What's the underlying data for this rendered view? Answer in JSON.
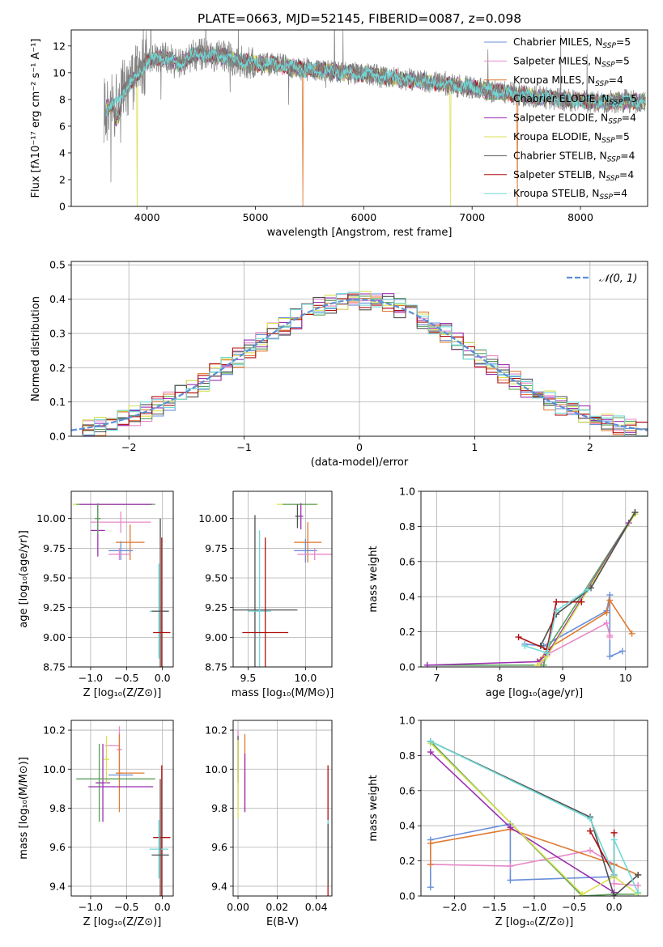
{
  "chart_data": [
    {
      "id": "spectrum",
      "type": "line",
      "title": "PLATE=0663, MJD=52145, FIBERID=0087, z=0.098",
      "xlabel": "wavelength [Angstrom, rest frame]",
      "ylabel": "Flux [fλ10⁻¹⁷ erg cm⁻² s⁻¹ A⁻¹]",
      "xlim": [
        3300,
        8620
      ],
      "ylim": [
        0,
        13.2
      ],
      "xticks": [
        4000,
        5000,
        6000,
        7000,
        8000
      ],
      "yticks": [
        0,
        2,
        4,
        6,
        8,
        10,
        12
      ],
      "grid": false,
      "legend_position": "top-right",
      "data_trace": {
        "color": "#808080",
        "x": [
          3600,
          3700,
          3800,
          3900,
          4000,
          4100,
          4200,
          4300,
          4400,
          4500,
          4600,
          4700,
          4800,
          4900,
          5000,
          5200,
          5400,
          5600,
          5800,
          6000,
          6200,
          6400,
          6600,
          6800,
          7000,
          7200,
          7400,
          7600,
          7800,
          8000,
          8200,
          8400,
          8600
        ],
        "y": [
          7.2,
          7.6,
          8.8,
          9.8,
          10.8,
          11.2,
          11.0,
          10.6,
          11.2,
          11.4,
          11.3,
          11.2,
          11.0,
          10.8,
          10.7,
          10.6,
          10.3,
          10.2,
          10.0,
          9.9,
          9.7,
          9.5,
          9.3,
          9.1,
          8.9,
          8.6,
          8.4,
          8.2,
          8.0,
          7.9,
          7.8,
          7.9,
          7.8
        ],
        "noise_amplitude": 1.4
      },
      "legend": [
        {
          "name": "Chabrier MILES, N_SSP=5",
          "color": "#6a8fd8",
          "base": "Chabrier MILES, N",
          "sub": "SSP",
          "suffix": "=5"
        },
        {
          "name": "Salpeter MILES, N_SSP=5",
          "color": "#e888c8",
          "base": "Salpeter MILES, N",
          "sub": "SSP",
          "suffix": "=5"
        },
        {
          "name": "Kroupa MILES, N_SSP=4",
          "color": "#e07a30",
          "base": "Kroupa MILES, N",
          "sub": "SSP",
          "suffix": "=4"
        },
        {
          "name": "Chabrier ELODIE, N_SSP=5",
          "color": "#5aa05a",
          "base": "Chabrier ELODIE, N",
          "sub": "SSP",
          "suffix": "=5"
        },
        {
          "name": "Salpeter ELODIE, N_SSP=4",
          "color": "#9a30b0",
          "base": "Salpeter ELODIE, N",
          "sub": "SSP",
          "suffix": "=4"
        },
        {
          "name": "Kroupa ELODIE, N_SSP=5",
          "color": "#d8e050",
          "base": "Kroupa ELODIE, N",
          "sub": "SSP",
          "suffix": "=5"
        },
        {
          "name": "Chabrier STELIB, N_SSP=4",
          "color": "#505050",
          "base": "Chabrier STELIB, N",
          "sub": "SSP",
          "suffix": "=4"
        },
        {
          "name": "Salpeter STELIB, N_SSP=4",
          "color": "#b01010",
          "base": "Salpeter STELIB, N",
          "sub": "SSP",
          "suffix": "=4"
        },
        {
          "name": "Kroupa STELIB, N_SSP=4",
          "color": "#70d8d8",
          "base": "Kroupa STELIB, N",
          "sub": "SSP",
          "suffix": "=4"
        }
      ],
      "model_drops": [
        {
          "x": 3540,
          "series": 2
        },
        {
          "x": 3910,
          "series": 5
        },
        {
          "x": 5440,
          "series": 2
        },
        {
          "x": 6800,
          "series": 5
        },
        {
          "x": 7420,
          "series": 2
        }
      ]
    },
    {
      "id": "residuals",
      "type": "bar",
      "xlabel": "(data-model)/error",
      "ylabel": "Normed distribution",
      "xlim": [
        -2.5,
        2.5
      ],
      "ylim": [
        0,
        0.51
      ],
      "xticks": [
        -2,
        -1,
        0,
        1,
        2
      ],
      "yticks": [
        0.0,
        0.1,
        0.2,
        0.3,
        0.4,
        0.5
      ],
      "grid": true,
      "legend_position": "top-right",
      "gaussian": {
        "name": "𝒩(0, 1)",
        "color": "#5b8fd6"
      },
      "bin_edges_start": -2.5,
      "bin_width": 0.1,
      "series_colors": [
        "#6a8fd8",
        "#e888c8",
        "#e07a30",
        "#5aa05a",
        "#9a30b0",
        "#d8e050",
        "#505050",
        "#b01010",
        "#70d8d8"
      ]
    },
    {
      "id": "age_vs_Z",
      "type": "scatter",
      "xlabel": "Z [log₁₀(Z/Z⊙)]",
      "ylabel": "age  [log₁₀(age/yr)]",
      "xlim": [
        -1.27,
        0.15
      ],
      "ylim": [
        8.75,
        10.23
      ],
      "xticks": [
        -1.0,
        -0.5,
        0.0
      ],
      "yticks": [
        8.75,
        9.0,
        9.25,
        9.5,
        9.75,
        10.0
      ],
      "grid": true,
      "points": [
        {
          "x": -0.7,
          "y": 10.12,
          "xerr": 0.55,
          "yerr": 0.0,
          "color": "#d8e050"
        },
        {
          "x": -0.65,
          "y": 10.12,
          "xerr": 0.55,
          "yerr": 0.0,
          "color": "#5aa05a"
        },
        {
          "x": -0.65,
          "y": 10.12,
          "xerr": 0.5,
          "yerr": 0.0,
          "color": "#9a30b0"
        },
        {
          "x": -0.58,
          "y": 9.97,
          "xerr": 0.42,
          "yerr": 0.09,
          "color": "#e888c8"
        },
        {
          "x": -0.9,
          "y": 9.9,
          "xerr": 0.1,
          "yerr": 0.22,
          "color": "#9a30b0"
        },
        {
          "x": -0.9,
          "y": 10.0,
          "xerr": 0.04,
          "yerr": 0.13,
          "color": "#5aa05a"
        },
        {
          "x": -0.45,
          "y": 9.8,
          "xerr": 0.2,
          "yerr": 0.15,
          "color": "#e07a30"
        },
        {
          "x": -0.58,
          "y": 9.73,
          "xerr": 0.17,
          "yerr": 0.08,
          "color": "#6a8fd8"
        },
        {
          "x": -0.6,
          "y": 9.7,
          "xerr": 0.15,
          "yerr": 0.05,
          "color": "#e888c8"
        },
        {
          "x": -0.05,
          "y": 9.22,
          "xerr": 0.13,
          "yerr": 0.4,
          "color": "#70d8d8"
        },
        {
          "x": -0.03,
          "y": 9.22,
          "xerr": 0.12,
          "yerr": 0.78,
          "color": "#505050"
        },
        {
          "x": -0.01,
          "y": 9.04,
          "xerr": 0.12,
          "yerr": 0.8,
          "color": "#b01010"
        }
      ]
    },
    {
      "id": "age_vs_mass",
      "type": "scatter",
      "xlabel": "mass [log₁₀(M/M⊙)]",
      "ylabel": "",
      "xlim": [
        9.37,
        10.23
      ],
      "ylim": [
        8.75,
        10.23
      ],
      "xticks": [
        9.5,
        10.0
      ],
      "yticks": [
        8.75,
        9.0,
        9.25,
        9.5,
        9.75,
        10.0
      ],
      "grid": true,
      "points": [
        {
          "x": 9.93,
          "y": 10.12,
          "xerr": 0.18,
          "yerr": 0.0,
          "color": "#d8e050"
        },
        {
          "x": 9.95,
          "y": 10.12,
          "xerr": 0.15,
          "yerr": 0.0,
          "color": "#5aa05a"
        },
        {
          "x": 9.96,
          "y": 10.02,
          "xerr": 0.02,
          "yerr": 0.11,
          "color": "#9a30b0"
        },
        {
          "x": 9.93,
          "y": 10.02,
          "xerr": 0.02,
          "yerr": 0.1,
          "color": "#505050"
        },
        {
          "x": 10.02,
          "y": 9.8,
          "xerr": 0.12,
          "yerr": 0.17,
          "color": "#e07a30"
        },
        {
          "x": 10.0,
          "y": 9.73,
          "xerr": 0.1,
          "yerr": 0.1,
          "color": "#6a8fd8"
        },
        {
          "x": 10.08,
          "y": 9.7,
          "xerr": 0.15,
          "yerr": 0.05,
          "color": "#e888c8"
        },
        {
          "x": 9.56,
          "y": 9.23,
          "xerr": 0.37,
          "yerr": 0.8,
          "color": "#505050"
        },
        {
          "x": 9.6,
          "y": 9.22,
          "xerr": 0.1,
          "yerr": 0.68,
          "color": "#70d8d8"
        },
        {
          "x": 9.65,
          "y": 9.04,
          "xerr": 0.2,
          "yerr": 0.8,
          "color": "#b01010"
        }
      ]
    },
    {
      "id": "weight_vs_age",
      "type": "line",
      "xlabel": "age  [log₁₀(age/yr)]",
      "ylabel": "mass weight",
      "xlim": [
        6.75,
        10.35
      ],
      "ylim": [
        0,
        1.0
      ],
      "xticks": [
        7,
        8,
        9,
        10
      ],
      "yticks": [
        0.0,
        0.2,
        0.4,
        0.6,
        0.8,
        1.0
      ],
      "grid": true,
      "series": [
        {
          "color": "#6a8fd8",
          "x": [
            8.4,
            8.7,
            9.7,
            9.75,
            9.75,
            9.95
          ],
          "y": [
            0.13,
            0.12,
            0.32,
            0.41,
            0.06,
            0.09
          ]
        },
        {
          "color": "#e888c8",
          "x": [
            8.65,
            8.75,
            9.7,
            9.75,
            9.75
          ],
          "y": [
            0.01,
            0.07,
            0.25,
            0.18,
            0.17
          ]
        },
        {
          "color": "#e07a30",
          "x": [
            8.65,
            8.75,
            9.7,
            9.75,
            10.1
          ],
          "y": [
            0.04,
            0.1,
            0.31,
            0.38,
            0.19
          ]
        },
        {
          "color": "#5aa05a",
          "x": [
            6.85,
            8.7,
            8.75,
            10.15
          ],
          "y": [
            0.01,
            0.01,
            0.1,
            0.88
          ]
        },
        {
          "color": "#9a30b0",
          "x": [
            6.85,
            8.6,
            8.75,
            10.05
          ],
          "y": [
            0.01,
            0.03,
            0.07,
            0.82
          ]
        },
        {
          "color": "#d8e050",
          "x": [
            8.6,
            8.75,
            10.15
          ],
          "y": [
            0.01,
            0.06,
            0.87
          ]
        },
        {
          "color": "#505050",
          "x": [
            8.65,
            8.9,
            9.45,
            10.15
          ],
          "y": [
            0.12,
            0.3,
            0.45,
            0.88
          ]
        },
        {
          "color": "#b01010",
          "x": [
            8.3,
            8.75,
            8.9,
            9.3
          ],
          "y": [
            0.17,
            0.1,
            0.37,
            0.37
          ]
        },
        {
          "color": "#70d8d8",
          "x": [
            8.4,
            8.75,
            8.9,
            9.4
          ],
          "y": [
            0.12,
            0.08,
            0.32,
            0.44
          ]
        }
      ]
    },
    {
      "id": "mass_vs_Z",
      "type": "scatter",
      "xlabel": "Z [log₁₀(Z/Z⊙)]",
      "ylabel": "mass [log₁₀(M/M⊙)]",
      "xlim": [
        -1.27,
        0.15
      ],
      "ylim": [
        9.35,
        10.25
      ],
      "xticks": [
        -1.0,
        -0.5,
        0.0
      ],
      "yticks": [
        9.4,
        9.6,
        9.8,
        10.0,
        10.2
      ],
      "grid": true,
      "points": [
        {
          "x": -0.6,
          "y": 10.1,
          "xerr": 0.04,
          "yerr": 0.12,
          "color": "#e888c8"
        },
        {
          "x": -0.7,
          "y": 10.12,
          "xerr": 0.1,
          "yerr": 0.0,
          "color": "#e888c8"
        },
        {
          "x": -0.6,
          "y": 9.98,
          "xerr": 0.04,
          "yerr": 0.2,
          "color": "#e07a30"
        },
        {
          "x": -0.88,
          "y": 9.93,
          "xerr": 0.05,
          "yerr": 0.2,
          "color": "#5aa05a"
        },
        {
          "x": -0.83,
          "y": 9.93,
          "xerr": 0.1,
          "yerr": 0.2,
          "color": "#9a30b0"
        },
        {
          "x": -0.78,
          "y": 10.05,
          "xerr": 0.04,
          "yerr": 0.12,
          "color": "#d8e050"
        },
        {
          "x": -0.45,
          "y": 9.98,
          "xerr": 0.2,
          "yerr": 0.0,
          "color": "#e07a30"
        },
        {
          "x": -0.58,
          "y": 9.97,
          "xerr": 0.17,
          "yerr": 0.0,
          "color": "#6a8fd8"
        },
        {
          "x": -0.65,
          "y": 9.95,
          "xerr": 0.55,
          "yerr": 0.0,
          "color": "#5aa05a"
        },
        {
          "x": -0.58,
          "y": 9.91,
          "xerr": 0.45,
          "yerr": 0.0,
          "color": "#9a30b0"
        },
        {
          "x": -0.01,
          "y": 9.65,
          "xerr": 0.12,
          "yerr": 0.37,
          "color": "#b01010"
        },
        {
          "x": -0.05,
          "y": 9.59,
          "xerr": 0.13,
          "yerr": 0.15,
          "color": "#70d8d8"
        },
        {
          "x": -0.03,
          "y": 9.56,
          "xerr": 0.12,
          "yerr": 0.39,
          "color": "#505050"
        }
      ]
    },
    {
      "id": "mass_vs_ebv",
      "type": "scatter",
      "xlabel": "E(B-V)",
      "ylabel": "",
      "xlim": [
        -0.0025,
        0.048
      ],
      "ylim": [
        9.35,
        10.25
      ],
      "xticks": [
        0.0,
        0.02,
        0.04
      ],
      "yticks": [
        9.4,
        9.6,
        9.8,
        10.0,
        10.2
      ],
      "grid": true,
      "points": [
        {
          "x": 0.0,
          "y": 10.0,
          "xerr": 0.0,
          "yerr": 0.2,
          "color": "#e888c8"
        },
        {
          "x": 0.0,
          "y": 10.05,
          "xerr": 0.0,
          "yerr": 0.12,
          "color": "#505050"
        },
        {
          "x": 0.0,
          "y": 9.95,
          "xerr": 0.0,
          "yerr": 0.2,
          "color": "#d8e050"
        },
        {
          "x": 0.0035,
          "y": 9.98,
          "xerr": 0.0,
          "yerr": 0.2,
          "color": "#e07a30"
        },
        {
          "x": 0.0035,
          "y": 9.93,
          "xerr": 0.0,
          "yerr": 0.15,
          "color": "#9a30b0"
        },
        {
          "x": 0.046,
          "y": 9.65,
          "xerr": 0.0,
          "yerr": 0.37,
          "color": "#b01010"
        },
        {
          "x": 0.046,
          "y": 9.59,
          "xerr": 0.0,
          "yerr": 0.15,
          "color": "#70d8d8"
        },
        {
          "x": 0.046,
          "y": 9.56,
          "xerr": 0.0,
          "yerr": 0.16,
          "color": "#505050"
        }
      ]
    },
    {
      "id": "weight_vs_Z",
      "type": "line",
      "xlabel": "Z [log₁₀(Z/Z⊙)]",
      "ylabel": "mass weight",
      "xlim": [
        -2.42,
        0.42
      ],
      "ylim": [
        0,
        1.0
      ],
      "xticks": [
        -2.0,
        -1.5,
        -1.0,
        -0.5,
        0.0
      ],
      "yticks": [
        0.0,
        0.2,
        0.4,
        0.6,
        0.8,
        1.0
      ],
      "grid": true,
      "series": [
        {
          "color": "#6a8fd8",
          "x": [
            -2.3,
            -2.3,
            -1.3,
            -1.3,
            0.0
          ],
          "y": [
            0.05,
            0.32,
            0.41,
            0.09,
            0.11
          ]
        },
        {
          "color": "#e888c8",
          "x": [
            -2.3,
            -1.3,
            -0.3,
            0.0,
            0.0,
            0.3
          ],
          "y": [
            0.18,
            0.17,
            0.26,
            0.18,
            0.07,
            0.06
          ]
        },
        {
          "color": "#e07a30",
          "x": [
            -2.3,
            -2.3,
            -1.3,
            0.0,
            0.3
          ],
          "y": [
            0.18,
            0.3,
            0.38,
            0.18,
            0.12
          ]
        },
        {
          "color": "#5aa05a",
          "x": [
            -2.3,
            -0.4,
            0.0,
            0.3
          ],
          "y": [
            0.88,
            0.0,
            0.01,
            0.01
          ]
        },
        {
          "color": "#9a30b0",
          "x": [
            -2.3,
            -1.3,
            0.0
          ],
          "y": [
            0.82,
            0.39,
            0.02
          ]
        },
        {
          "color": "#d8e050",
          "x": [
            -2.3,
            -0.4,
            0.0,
            0.3
          ],
          "y": [
            0.87,
            0.01,
            0.11,
            0.01
          ]
        },
        {
          "color": "#505050",
          "x": [
            -2.3,
            -0.3,
            0.0,
            0.3
          ],
          "y": [
            0.88,
            0.45,
            0.0,
            0.12
          ]
        },
        {
          "color": "#b01010",
          "x": [
            -0.3,
            0.0,
            0.0
          ],
          "y": [
            0.37,
            0.12,
            0.36
          ]
        },
        {
          "color": "#70d8d8",
          "x": [
            -2.3,
            -0.3,
            0.0,
            0.0,
            0.3
          ],
          "y": [
            0.88,
            0.44,
            0.12,
            0.32,
            0.02
          ]
        }
      ]
    }
  ]
}
